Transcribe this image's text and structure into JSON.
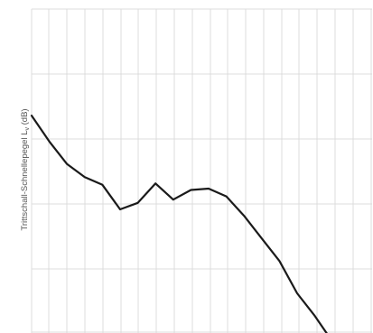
{
  "chart_data": {
    "type": "line",
    "ylabel_main": "Trittschall-Schnellepegel L",
    "ylabel_sub": "v",
    "ylabel_tail": " (dB)",
    "grid": true,
    "x_count": 18,
    "ylim": [
      0,
      5
    ],
    "series": [
      {
        "values": [
          3.35,
          2.95,
          2.6,
          2.4,
          2.28,
          1.9,
          2.0,
          2.3,
          2.05,
          2.2,
          2.22,
          2.1,
          1.8,
          1.45,
          1.1,
          0.6,
          0.25,
          -0.15
        ]
      }
    ],
    "colors": {
      "line": "#1a1a1a",
      "grid": "#dcdcdc"
    }
  }
}
